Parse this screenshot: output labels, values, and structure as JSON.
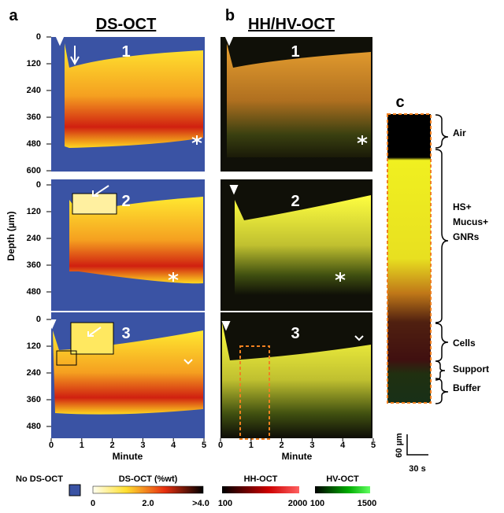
{
  "panel_a": {
    "letter": "a",
    "title": "DS-OCT",
    "y_label": "Depth (µm)",
    "x_label": "Minute",
    "row1_yticks": [
      "0",
      "120",
      "240",
      "360",
      "480",
      "600"
    ],
    "row_yticks": [
      "0",
      "120",
      "240",
      "360",
      "480"
    ],
    "xticks": [
      "0",
      "1",
      "2",
      "3",
      "4",
      "5"
    ],
    "row_numbers": [
      "1",
      "2",
      "3"
    ]
  },
  "panel_b": {
    "letter": "b",
    "title": "HH/HV-OCT",
    "x_label": "Minute",
    "xticks": [
      "0",
      "1",
      "2",
      "3",
      "4",
      "5"
    ],
    "row_numbers": [
      "1",
      "2",
      "3"
    ]
  },
  "panel_c": {
    "letter": "c",
    "regions": [
      [
        "Air"
      ],
      [
        "HS+",
        "Mucus+",
        "GNRs"
      ],
      [
        "Cells"
      ],
      [
        "Support"
      ],
      [
        "Buffer"
      ]
    ],
    "scale_y": "60 µm",
    "scale_x": "30 s"
  },
  "legend": {
    "no_ds": "No DS-OCT",
    "ds_label": "DS-OCT (%wt)",
    "ds_ticks": [
      "0",
      "2.0",
      ">4.0"
    ],
    "hh_label": "HH-OCT",
    "hh_ticks": [
      "100",
      "2000"
    ],
    "hv_label": "HV-OCT",
    "hv_ticks": [
      "100",
      "1500"
    ]
  }
}
